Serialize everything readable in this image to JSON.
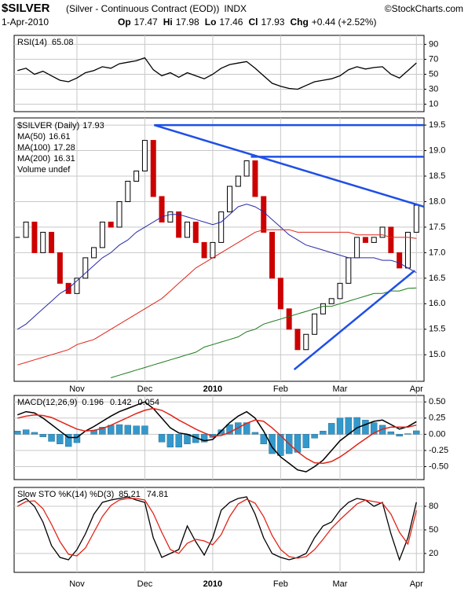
{
  "header": {
    "symbol": "$SILVER",
    "description": "(Silver - Continuous Contract (EOD))",
    "exchange": "INDX",
    "source": "©StockCharts.com",
    "date": "1-Apr-2010",
    "quote": [
      {
        "label": "Op",
        "value": 17.47
      },
      {
        "label": "Hi",
        "value": 17.98
      },
      {
        "label": "Lo",
        "value": 17.46
      },
      {
        "label": "Cl",
        "value": 17.93
      },
      {
        "label": "Chg",
        "value": "+0.44 (+2.52%)"
      }
    ]
  },
  "chart_data": [
    {
      "type": "line",
      "title": "RSI(14)",
      "ylim": [
        0,
        102
      ],
      "yticks": [
        90,
        70,
        50,
        30,
        10
      ],
      "series": [
        {
          "color": "#000000",
          "values": [
            55,
            58,
            50,
            54,
            48,
            42,
            40,
            45,
            52,
            55,
            60,
            58,
            64,
            66,
            68,
            72,
            56,
            48,
            52,
            46,
            52,
            48,
            44,
            50,
            58,
            63,
            65,
            67,
            58,
            48,
            38,
            34,
            31,
            30,
            35,
            40,
            42,
            44,
            48,
            56,
            60,
            57,
            59,
            60,
            50,
            45,
            55,
            65.08
          ]
        }
      ]
    },
    {
      "type": "candlestick",
      "title": "$SILVER (Daily)",
      "up_color": "#000000",
      "down_color": "#cc0000",
      "close": [
        17.3,
        17.6,
        17.0,
        17.4,
        17.0,
        16.4,
        16.2,
        16.5,
        16.9,
        17.1,
        17.6,
        17.5,
        18.0,
        18.4,
        18.6,
        19.2,
        18.1,
        17.6,
        17.8,
        17.3,
        17.6,
        17.2,
        16.9,
        17.2,
        17.8,
        18.3,
        18.5,
        18.8,
        18.1,
        17.4,
        16.5,
        15.9,
        15.5,
        15.1,
        15.4,
        15.8,
        16.0,
        16.1,
        16.4,
        16.9,
        17.3,
        17.2,
        17.3,
        17.5,
        17.0,
        16.7,
        17.4,
        17.93
      ],
      "series": [
        {
          "name": "MA(50)",
          "color": "#2a2aaa",
          "values": [
            15.5,
            15.6,
            15.75,
            15.9,
            16.05,
            16.2,
            16.3,
            16.45,
            16.6,
            16.75,
            16.9,
            17.0,
            17.15,
            17.25,
            17.4,
            17.5,
            17.6,
            17.7,
            17.75,
            17.75,
            17.7,
            17.65,
            17.6,
            17.55,
            17.6,
            17.75,
            17.9,
            17.95,
            17.9,
            17.8,
            17.65,
            17.5,
            17.35,
            17.25,
            17.15,
            17.1,
            17.05,
            17.0,
            16.95,
            16.9,
            16.9,
            16.9,
            16.9,
            16.85,
            16.85,
            16.8,
            16.7,
            16.61
          ]
        },
        {
          "name": "MA(100)",
          "color": "#e02418",
          "values": [
            14.8,
            14.85,
            14.9,
            14.95,
            15.0,
            15.05,
            15.1,
            15.2,
            15.25,
            15.3,
            15.4,
            15.5,
            15.6,
            15.7,
            15.8,
            15.9,
            16.0,
            16.1,
            16.25,
            16.4,
            16.55,
            16.7,
            16.8,
            16.9,
            17.0,
            17.1,
            17.2,
            17.3,
            17.4,
            17.45,
            17.45,
            17.45,
            17.45,
            17.4,
            17.4,
            17.4,
            17.4,
            17.4,
            17.4,
            17.4,
            17.35,
            17.35,
            17.35,
            17.35,
            17.3,
            17.3,
            17.3,
            17.28
          ]
        },
        {
          "name": "MA(200)",
          "color": "#1a7a1a",
          "values": [
            null,
            null,
            null,
            null,
            null,
            null,
            null,
            null,
            null,
            null,
            null,
            14.55,
            14.6,
            14.65,
            14.7,
            14.75,
            14.8,
            14.85,
            14.9,
            14.95,
            15.0,
            15.05,
            15.15,
            15.2,
            15.25,
            15.3,
            15.35,
            15.45,
            15.5,
            15.6,
            15.65,
            15.7,
            15.75,
            15.8,
            15.85,
            15.9,
            15.95,
            15.95,
            16.0,
            16.05,
            16.1,
            16.15,
            16.2,
            16.2,
            16.25,
            16.25,
            16.3,
            16.31
          ]
        }
      ],
      "volume_label": "Volume undef",
      "trendlines": [
        {
          "x": [
            16.1,
            47.9
          ],
          "y": [
            19.5,
            17.9
          ]
        },
        {
          "x": [
            16.1,
            47.9
          ],
          "y": [
            19.5,
            19.5
          ]
        },
        {
          "x": [
            27.5,
            47.9
          ],
          "y": [
            18.88,
            18.88
          ]
        },
        {
          "x": [
            32.6,
            46.8
          ],
          "y": [
            14.71,
            16.65
          ]
        }
      ],
      "trendline_color": "#1f4fe6",
      "xlim": [
        -0.4,
        47.9
      ],
      "xticks": [
        {
          "value": 7,
          "label": "Nov"
        },
        {
          "value": 15,
          "label": "Dec"
        },
        {
          "value": 23,
          "label": "2010"
        },
        {
          "value": 31,
          "label": "Feb"
        },
        {
          "value": 38,
          "label": "Mar"
        },
        {
          "value": 47,
          "label": "Apr"
        }
      ],
      "ylim": [
        14.48,
        19.64
      ],
      "yticks": [
        {
          "value": 15,
          "label": "15.0"
        },
        15.5,
        {
          "value": 16,
          "label": "16.0"
        },
        16.5,
        {
          "value": 17,
          "label": "17.0"
        },
        17.5,
        {
          "value": 18,
          "label": "18.0"
        },
        18.5,
        {
          "value": 19,
          "label": "19.0"
        },
        19.5
      ]
    },
    {
      "type": "macd",
      "title": "MACD(12,26,9)",
      "ylim": [
        -0.7,
        0.6
      ],
      "yticks": [
        {
          "value": 0.5,
          "label": "0.50"
        },
        0.25,
        {
          "value": 0,
          "label": "0.00"
        },
        -0.25,
        {
          "value": -0.5,
          "label": "-0.50"
        }
      ],
      "series": [
        {
          "kind": "line",
          "color": "#000000",
          "values": [
            0.3,
            0.35,
            0.33,
            0.25,
            0.15,
            0.05,
            -0.05,
            -0.05,
            0.05,
            0.12,
            0.2,
            0.28,
            0.35,
            0.4,
            0.45,
            0.5,
            0.4,
            0.25,
            0.1,
            0.02,
            0.0,
            -0.05,
            -0.1,
            -0.08,
            0.05,
            0.18,
            0.28,
            0.35,
            0.25,
            0.05,
            -0.2,
            -0.35,
            -0.45,
            -0.55,
            -0.58,
            -0.5,
            -0.4,
            -0.25,
            -0.1,
            0.0,
            0.1,
            0.15,
            0.2,
            0.22,
            0.15,
            0.08,
            0.12,
            0.196
          ]
        },
        {
          "kind": "line",
          "color": "#e02418",
          "values": [
            0.25,
            0.28,
            0.3,
            0.29,
            0.26,
            0.2,
            0.14,
            0.08,
            0.05,
            0.06,
            0.09,
            0.14,
            0.2,
            0.26,
            0.32,
            0.37,
            0.4,
            0.37,
            0.3,
            0.22,
            0.15,
            0.08,
            0.02,
            -0.03,
            -0.02,
            0.03,
            0.1,
            0.17,
            0.22,
            0.2,
            0.1,
            -0.02,
            -0.15,
            -0.27,
            -0.37,
            -0.44,
            -0.45,
            -0.42,
            -0.35,
            -0.26,
            -0.16,
            -0.07,
            0.02,
            0.08,
            0.11,
            0.11,
            0.11,
            0.142
          ]
        },
        {
          "kind": "bar",
          "color": "#3399cc",
          "values": [
            0.05,
            0.07,
            0.03,
            -0.04,
            -0.11,
            -0.15,
            -0.19,
            -0.13,
            0,
            0.06,
            0.11,
            0.14,
            0.15,
            0.14,
            0.13,
            0.13,
            0,
            -0.12,
            -0.2,
            -0.2,
            -0.15,
            -0.13,
            -0.12,
            -0.05,
            0.07,
            0.15,
            0.18,
            0.18,
            0.03,
            -0.15,
            -0.3,
            -0.33,
            -0.3,
            -0.28,
            -0.21,
            -0.06,
            0.05,
            0.17,
            0.25,
            0.26,
            0.26,
            0.22,
            0.18,
            0.14,
            0.04,
            -0.03,
            0.01,
            0.054
          ]
        }
      ]
    },
    {
      "type": "line",
      "title": "Slow STO %K(14) %D(3)",
      "ylim": [
        -4,
        104
      ],
      "yticks": [
        80,
        50,
        20
      ],
      "series": [
        {
          "color": "#000000",
          "values": [
            85,
            90,
            80,
            60,
            30,
            15,
            12,
            25,
            45,
            70,
            85,
            88,
            90,
            92,
            88,
            85,
            40,
            15,
            20,
            25,
            55,
            35,
            18,
            40,
            75,
            85,
            90,
            92,
            70,
            40,
            20,
            15,
            12,
            15,
            20,
            40,
            55,
            60,
            75,
            85,
            90,
            88,
            80,
            85,
            45,
            12,
            40,
            85.21
          ]
        },
        {
          "color": "#e02418",
          "values": [
            80,
            86,
            87,
            77,
            57,
            35,
            19,
            17,
            27,
            47,
            67,
            81,
            88,
            90,
            90,
            88,
            71,
            47,
            25,
            20,
            33,
            38,
            36,
            31,
            44,
            67,
            83,
            89,
            84,
            67,
            43,
            25,
            16,
            14,
            16,
            25,
            38,
            52,
            63,
            73,
            83,
            88,
            86,
            84,
            70,
            47,
            32,
            74.81
          ]
        }
      ]
    }
  ]
}
